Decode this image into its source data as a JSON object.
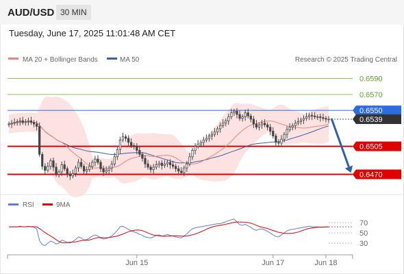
{
  "header": {
    "symbol": "AUD/USD",
    "timeframe": "30 MIN",
    "datetime": "Tuesday, June 17, 2025 11:01:48 AM CET"
  },
  "colors": {
    "candle": "#444444",
    "ma20": "#f08080",
    "ma50": "#3a5fa6",
    "band_fill": "#fde2e2",
    "support": "#e00000",
    "resistance_blue": "#2d6be0",
    "target_green": "#8bc34a",
    "arrow": "#2f5fa8",
    "rsi": "#5b7fd6",
    "rsi_ma": "#e00000",
    "last_price_bg": "#333333"
  },
  "chart_data": [
    {
      "type": "candlestick",
      "legend": [
        {
          "name": "MA 20 + Bollinger Bands",
          "color": "#f08080"
        },
        {
          "name": "MA 50",
          "color": "#3a5fa6"
        }
      ],
      "legend_placement": "top-left",
      "credit": "Research © 2025 Trading Central",
      "ylim": [
        0.6455,
        0.6605
      ],
      "x_ticks": [
        {
          "label": "Jun 15",
          "index": 46
        },
        {
          "label": "Jun 17",
          "index": 95
        },
        {
          "label": "Jun 18",
          "index": 114
        }
      ],
      "n_bars": 116,
      "levels": [
        {
          "value": 0.659,
          "label": "0.6590",
          "kind": "target"
        },
        {
          "value": 0.657,
          "label": "0.6570",
          "kind": "target"
        },
        {
          "value": 0.655,
          "label": "0.6550",
          "kind": "pivot"
        },
        {
          "value": 0.6505,
          "label": "0.6505",
          "kind": "support"
        },
        {
          "value": 0.647,
          "label": "0.6470",
          "kind": "support"
        }
      ],
      "last_price": {
        "value": 0.6539,
        "label": "0.6539"
      },
      "arrow": {
        "from": [
          116,
          0.654
        ],
        "to": [
          123,
          0.6472
        ]
      },
      "closes": [
        0.6533,
        0.6534,
        0.6535,
        0.6536,
        0.6537,
        0.6535,
        0.6536,
        0.6537,
        0.6535,
        0.6533,
        0.653,
        0.6495,
        0.648,
        0.6475,
        0.648,
        0.6487,
        0.6479,
        0.647,
        0.6473,
        0.6482,
        0.6477,
        0.647,
        0.6468,
        0.6471,
        0.6478,
        0.6485,
        0.648,
        0.6474,
        0.6476,
        0.648,
        0.6485,
        0.6489,
        0.6485,
        0.6477,
        0.6473,
        0.6475,
        0.6478,
        0.6483,
        0.6492,
        0.6501,
        0.6513,
        0.6517,
        0.6515,
        0.651,
        0.6506,
        0.6505,
        0.65,
        0.6495,
        0.649,
        0.6483,
        0.6479,
        0.6476,
        0.6479,
        0.6482,
        0.6484,
        0.6481,
        0.6483,
        0.6485,
        0.6482,
        0.648,
        0.6477,
        0.6474,
        0.6472,
        0.6478,
        0.6483,
        0.6492,
        0.65,
        0.6505,
        0.6508,
        0.651,
        0.6513,
        0.6515,
        0.6518,
        0.652,
        0.6523,
        0.6527,
        0.6531,
        0.6534,
        0.6537,
        0.6542,
        0.6547,
        0.6549,
        0.6545,
        0.654,
        0.6542,
        0.6547,
        0.6543,
        0.6539,
        0.6533,
        0.6529,
        0.6532,
        0.6534,
        0.6532,
        0.6529,
        0.6524,
        0.6518,
        0.651,
        0.6509,
        0.6514,
        0.652,
        0.6526,
        0.6529,
        0.6531,
        0.6534,
        0.6536,
        0.6538,
        0.654,
        0.6542,
        0.6544,
        0.6543,
        0.6542,
        0.6542,
        0.6541,
        0.654,
        0.6539,
        0.6539
      ]
    },
    {
      "type": "line",
      "legend": [
        {
          "name": "RSI",
          "color": "#5b7fd6"
        },
        {
          "name": "9MA",
          "color": "#e00000"
        }
      ],
      "ylim": [
        15,
        85
      ],
      "y_ticks": [
        70,
        50,
        30
      ],
      "rsi_ref": 62,
      "rsi": [
        62,
        62,
        62,
        62,
        63,
        62,
        62,
        63,
        62,
        61,
        58,
        35,
        27,
        25,
        30,
        34,
        32,
        28,
        30,
        36,
        34,
        31,
        30,
        33,
        37,
        42,
        40,
        36,
        37,
        40,
        44,
        46,
        44,
        40,
        38,
        39,
        41,
        44,
        49,
        55,
        62,
        63,
        60,
        57,
        54,
        52,
        50,
        47,
        45,
        42,
        41,
        40,
        42,
        45,
        46,
        44,
        45,
        47,
        45,
        44,
        42,
        41,
        40,
        44,
        48,
        54,
        58,
        60,
        61,
        62,
        63,
        64,
        65,
        66,
        67,
        68,
        68,
        70,
        72,
        74,
        76,
        77,
        72,
        66,
        65,
        67,
        64,
        61,
        57,
        55,
        57,
        58,
        56,
        53,
        50,
        46,
        43,
        42,
        46,
        50,
        54,
        56,
        57,
        58,
        59,
        60,
        61,
        62,
        63,
        62,
        62,
        62,
        61,
        61,
        62,
        62
      ]
    }
  ]
}
